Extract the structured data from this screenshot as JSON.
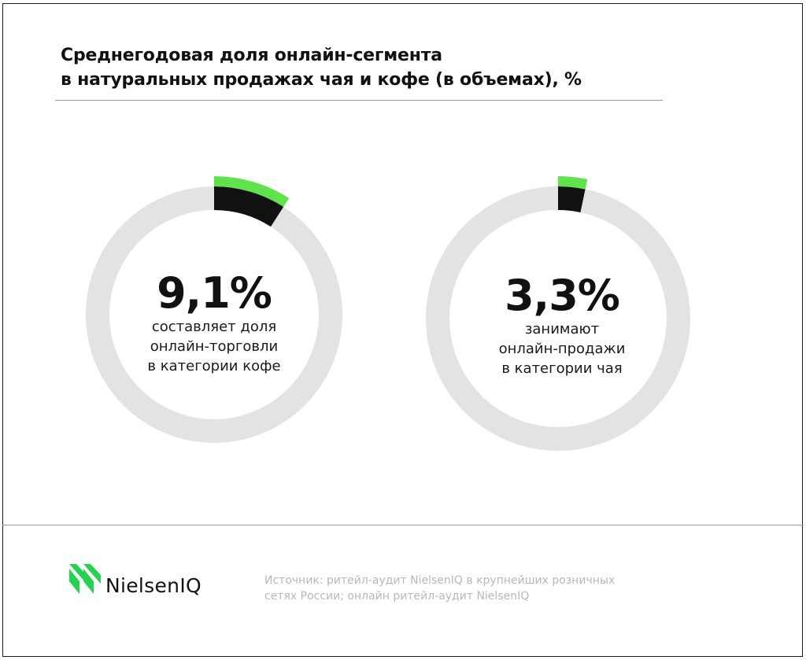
{
  "title": {
    "line1": "Среднегодовая доля онлайн-сегмента",
    "line2": "в натуральных продажах чая и кофе (в объемах), %"
  },
  "colors": {
    "track": "#e3e3e3",
    "segment_dark": "#111111",
    "segment_accent": "#5ee34b",
    "text": "#111111",
    "source_text": "#b8b8b8",
    "logo_green": "#22d34f"
  },
  "chart_data": [
    {
      "type": "pie",
      "value": 9.1,
      "value_label": "9,1%",
      "caption": [
        "составляет доля",
        "онлайн-торговли",
        "в категории кофе"
      ]
    },
    {
      "type": "pie",
      "value": 3.3,
      "value_label": "3,3%",
      "caption": [
        "занимают",
        "онлайн-продажи",
        "в категории чая"
      ]
    }
  ],
  "logo": {
    "text": "NielsenIQ"
  },
  "source": {
    "line1": "Источник: ритейл-аудит NielsenIQ в крупнейших розничных",
    "line2": "сетях России; онлайн ритейл-аудит NielsenIQ"
  }
}
